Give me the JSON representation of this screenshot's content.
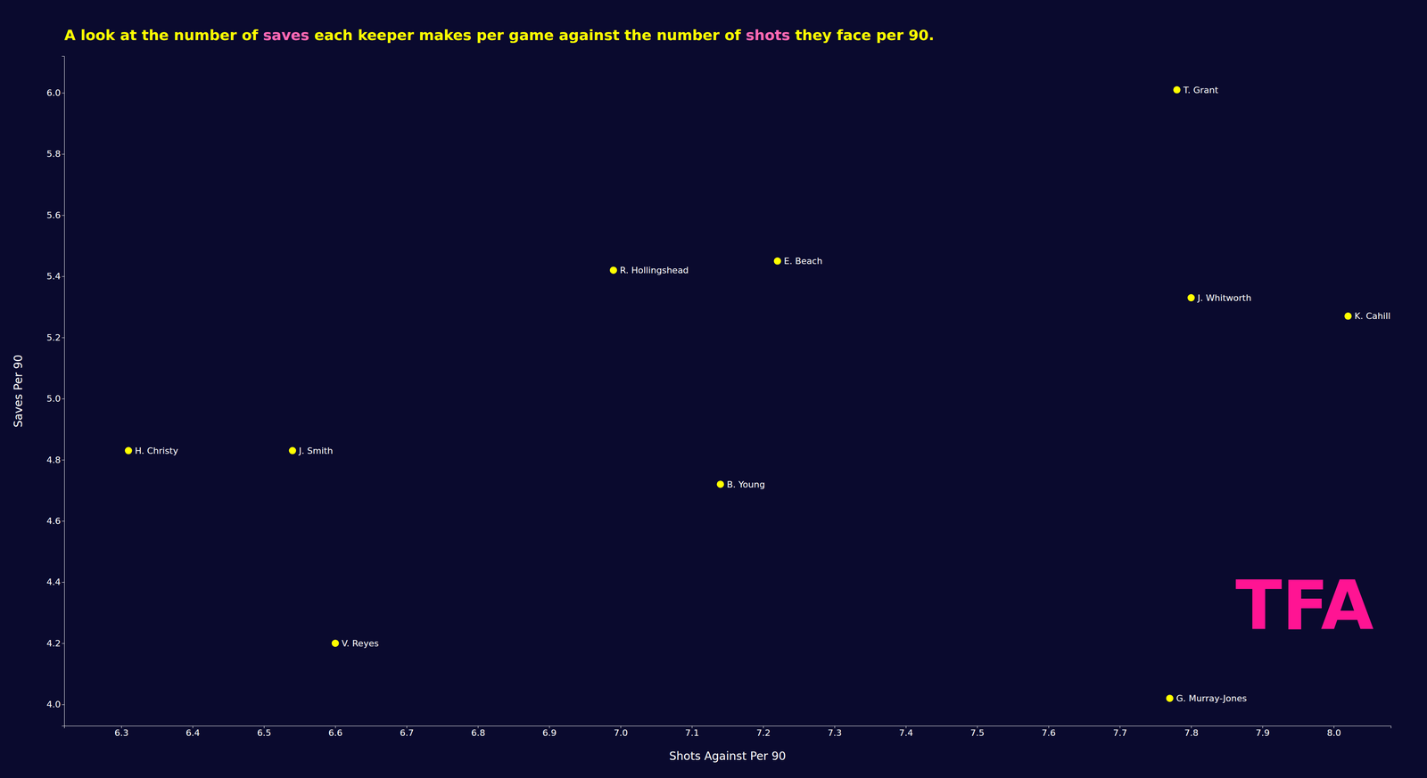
{
  "chart_data": {
    "type": "scatter",
    "title": [
      {
        "text": "A look at the number of ",
        "color": "#ffff00"
      },
      {
        "text": "saves",
        "color": "#ff69b4"
      },
      {
        "text": " each keeper makes per game against the number of ",
        "color": "#ffff00"
      },
      {
        "text": "shots",
        "color": "#ff69b4"
      },
      {
        "text": " they face per 90.",
        "color": "#ffff00"
      }
    ],
    "xlabel": "Shots Against Per 90",
    "ylabel": "Saves Per 90",
    "x": [
      7.78,
      6.99,
      7.22,
      7.8,
      8.02,
      6.31,
      6.54,
      7.14,
      6.6,
      7.77
    ],
    "values": [
      6.01,
      5.42,
      5.45,
      5.33,
      5.27,
      4.83,
      4.83,
      4.72,
      4.2,
      4.02
    ],
    "labels": [
      "T. Grant",
      "R. Hollingshead",
      "E. Beach",
      "J. Whitworth",
      "K. Cahill",
      "H. Christy",
      "J. Smith",
      "B. Young",
      "V. Reyes",
      "G. Murray-Jones"
    ],
    "color": "#ffff00",
    "xlim": [
      6.22,
      8.08
    ],
    "ylim": [
      3.93,
      6.12
    ],
    "xticks": [
      6.3,
      6.4,
      6.5,
      6.6,
      6.7,
      6.8,
      6.9,
      {
        "value": 7,
        "label": "7.0"
      },
      7.1,
      7.2,
      7.3,
      7.4,
      7.5,
      7.6,
      7.7,
      7.8,
      7.9,
      {
        "value": 8,
        "label": "8.0"
      }
    ],
    "yticks": [
      {
        "value": 4,
        "label": "4.0"
      },
      4.2,
      4.4,
      4.6,
      4.8,
      {
        "value": 5,
        "label": "5.0"
      },
      5.2,
      5.4,
      5.6,
      5.8,
      {
        "value": 6,
        "label": "6.0"
      }
    ],
    "grid": false,
    "annotations": [
      {
        "text": "TFA",
        "color": "#ff1493"
      }
    ]
  }
}
